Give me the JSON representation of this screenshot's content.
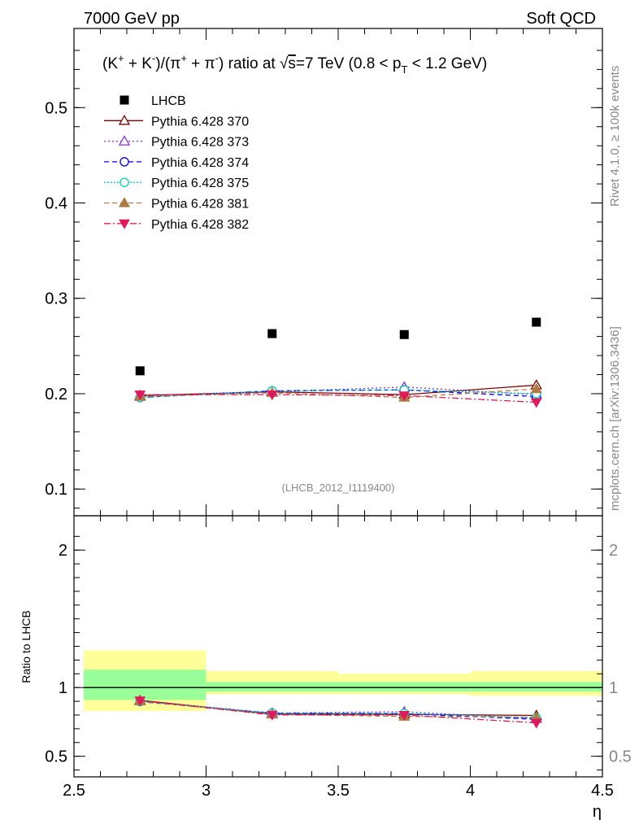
{
  "header": {
    "left": "7000 GeV pp",
    "right": "Soft QCD"
  },
  "side_labels": {
    "top": "Rivet 4.1.0, ≥ 100k events",
    "bottom": "mcplots.cern.ch [arXiv:1306.3436]"
  },
  "colors": {
    "data": "#000000",
    "p370": "#800000",
    "p373": "#8a2be2",
    "p374": "#0000ff",
    "p375": "#00cdbb",
    "p381": "#b07a45",
    "p382": "#e01a5a",
    "band_inner": "#99ff99",
    "band_outer": "#ffff99"
  },
  "chart_data": [
    {
      "type": "scatter",
      "title_parts": {
        "lead": "(K",
        "sup1": "+",
        "mid1": " + K",
        "sup2": "-",
        "mid2": ")/(π",
        "sup3": "+",
        "mid3": " + π",
        "sup4": "-",
        "mid4": ") ratio at √",
        "sqrt_arg": "s",
        "mid5": "=7 TeV (0.8 < p",
        "sub": "T",
        "tail": " < 1.2 GeV)"
      },
      "watermark": "(LHCB_2012_I1119400)",
      "xlim": [
        2.5,
        4.5
      ],
      "ylim": [
        0.072,
        0.583
      ],
      "yticks": [
        0.1,
        0.2,
        0.3,
        0.4,
        0.5
      ],
      "ytick_labels": [
        "0.1",
        "0.2",
        "0.3",
        "0.4",
        "0.5"
      ],
      "x": [
        2.75,
        3.25,
        3.75,
        4.25
      ],
      "xerr": 0.25,
      "data": {
        "name": "LHCB",
        "values": [
          0.224,
          0.263,
          0.262,
          0.275
        ]
      },
      "series": [
        {
          "name": "Pythia 6.428 370",
          "values": [
            0.198,
            0.202,
            0.199,
            0.209
          ],
          "errs": [
            0.002,
            0.002,
            0.003,
            0.004
          ]
        },
        {
          "name": "Pythia 6.428 373",
          "values": [
            0.197,
            0.202,
            0.207,
            0.199
          ],
          "errs": [
            0.002,
            0.002,
            0.003,
            0.004
          ]
        },
        {
          "name": "Pythia 6.428 374",
          "values": [
            0.196,
            0.203,
            0.204,
            0.197
          ],
          "errs": [
            0.002,
            0.002,
            0.003,
            0.004
          ]
        },
        {
          "name": "Pythia 6.428 375",
          "values": [
            0.196,
            0.203,
            0.204,
            0.2
          ],
          "errs": [
            0.002,
            0.002,
            0.003,
            0.004
          ]
        },
        {
          "name": "Pythia 6.428 381",
          "values": [
            0.197,
            0.201,
            0.196,
            0.205
          ],
          "errs": [
            0.002,
            0.002,
            0.003,
            0.004
          ]
        },
        {
          "name": "Pythia 6.428 382",
          "values": [
            0.199,
            0.199,
            0.198,
            0.191
          ],
          "errs": [
            0.002,
            0.002,
            0.003,
            0.004
          ]
        }
      ]
    },
    {
      "type": "scatter",
      "ylabel": "Ratio to LHCB",
      "xlabel": "η",
      "xlim": [
        2.5,
        4.5
      ],
      "ylim": [
        0.35,
        2.25
      ],
      "yticks": [
        0.5,
        1,
        2
      ],
      "ytick_labels": [
        "0.5",
        "1",
        "2"
      ],
      "xticks": [
        2.5,
        3,
        3.5,
        4,
        4.5
      ],
      "xtick_labels": [
        "2.5",
        "3",
        "3.5",
        "4",
        "4.5"
      ],
      "x": [
        2.75,
        3.25,
        3.75,
        4.25
      ],
      "bins": [
        [
          2.5,
          3.0
        ],
        [
          3.0,
          3.5
        ],
        [
          3.5,
          4.0
        ],
        [
          4.0,
          4.5
        ]
      ],
      "band_inner": [
        [
          0.91,
          1.13
        ],
        [
          0.97,
          1.04
        ],
        [
          0.97,
          1.04
        ],
        [
          0.97,
          1.04
        ]
      ],
      "band_outer": [
        [
          0.83,
          1.27
        ],
        [
          0.95,
          1.12
        ],
        [
          0.95,
          1.1
        ],
        [
          0.94,
          1.12
        ]
      ],
      "series": [
        {
          "name": "Pythia 6.428 370",
          "values": [
            0.907,
            0.807,
            0.805,
            0.797
          ]
        },
        {
          "name": "Pythia 6.428 373",
          "values": [
            0.902,
            0.815,
            0.824,
            0.774
          ]
        },
        {
          "name": "Pythia 6.428 374",
          "values": [
            0.898,
            0.812,
            0.81,
            0.769
          ]
        },
        {
          "name": "Pythia 6.428 375",
          "values": [
            0.899,
            0.815,
            0.812,
            0.781
          ]
        },
        {
          "name": "Pythia 6.428 381",
          "values": [
            0.902,
            0.805,
            0.79,
            0.784
          ]
        },
        {
          "name": "Pythia 6.428 382",
          "values": [
            0.905,
            0.801,
            0.8,
            0.743
          ]
        }
      ]
    }
  ]
}
